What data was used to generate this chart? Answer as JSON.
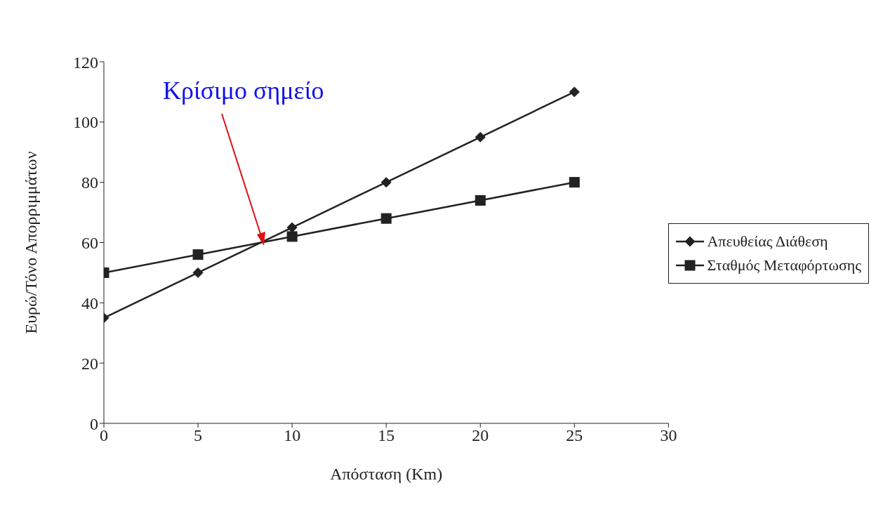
{
  "chart_data": {
    "type": "line",
    "x": [
      0,
      5,
      10,
      15,
      20,
      25
    ],
    "series": [
      {
        "name": "Απευθείας Διάθεση",
        "color": "#222222",
        "marker": "diamond",
        "values": [
          35,
          50,
          65,
          80,
          95,
          110
        ]
      },
      {
        "name": "Σταθμός Μεταφόρτωσης",
        "color": "#222222",
        "marker": "square",
        "values": [
          50,
          56,
          62,
          68,
          74,
          80
        ]
      }
    ],
    "xlabel": "Απόσταση (Km)",
    "ylabel": "Ευρώ/Τόνο Απορριμμάτων",
    "xlim": [
      0,
      30
    ],
    "xticks": [
      0,
      5,
      10,
      15,
      20,
      25,
      30
    ],
    "ylim": [
      0,
      120
    ],
    "yticks": [
      0,
      20,
      40,
      60,
      80,
      100,
      120
    ],
    "grid": false,
    "legend": "right",
    "line_style": "solid",
    "annotations": [
      "Κρίσιμο σημείο"
    ]
  }
}
